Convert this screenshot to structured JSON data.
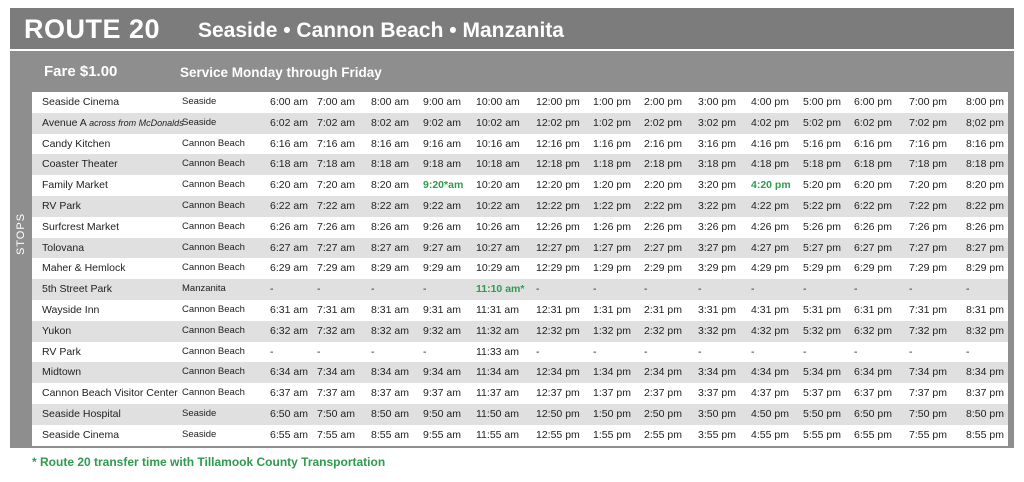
{
  "header": {
    "route": "ROUTE 20",
    "cities": "Seaside • Cannon Beach • Manzanita",
    "fare": "Fare $1.00",
    "service": "Service Monday through Friday",
    "side_label": "STOPS"
  },
  "rows": [
    {
      "stop": "Seaside Cinema",
      "note": "",
      "city": "Seaside",
      "times": [
        "6:00 am",
        "7:00 am",
        "8:00 am",
        "9:00 am",
        "10:00 am",
        "12:00 pm",
        "1:00 pm",
        "2:00 pm",
        "3:00 pm",
        "4:00 pm",
        "5:00 pm",
        "6:00 pm",
        "7:00 pm",
        "8:00 pm"
      ]
    },
    {
      "stop": "Avenue A",
      "note": "across from McDonalds",
      "city": "Seaside",
      "times": [
        "6:02 am",
        "7:02 am",
        "8:02 am",
        "9:02 am",
        "10:02 am",
        "12:02 pm",
        "1:02 pm",
        "2:02 pm",
        "3:02 pm",
        "4:02 pm",
        "5:02 pm",
        "6:02 pm",
        "7:02 pm",
        "8;02 pm"
      ]
    },
    {
      "stop": "Candy Kitchen",
      "note": "",
      "city": "Cannon Beach",
      "times": [
        "6:16 am",
        "7:16 am",
        "8:16 am",
        "9:16 am",
        "10:16 am",
        "12:16 pm",
        "1:16 pm",
        "2:16 pm",
        "3:16 pm",
        "4:16 pm",
        "5:16 pm",
        "6:16 pm",
        "7:16 pm",
        "8:16 pm"
      ]
    },
    {
      "stop": "Coaster Theater",
      "note": "",
      "city": "Cannon Beach",
      "times": [
        "6:18 am",
        "7:18 am",
        "8:18 am",
        "9:18 am",
        "10:18 am",
        "12:18 pm",
        "1:18 pm",
        "2:18 pm",
        "3:18 pm",
        "4:18 pm",
        "5:18 pm",
        "6:18 pm",
        "7:18 pm",
        "8:18 pm"
      ]
    },
    {
      "stop": "Family Market",
      "note": "",
      "city": "Cannon Beach",
      "times": [
        "6:20 am",
        "7:20 am",
        "8:20 am",
        "9:20*am",
        "10:20 am",
        "12:20 pm",
        "1:20 pm",
        "2:20 pm",
        "3:20 pm",
        "4:20 pm",
        "5:20 pm",
        "6:20 pm",
        "7:20 pm",
        "8:20 pm"
      ],
      "highlight": [
        3,
        9
      ]
    },
    {
      "stop": "RV Park",
      "note": "",
      "city": "Cannon Beach",
      "times": [
        "6:22 am",
        "7:22 am",
        "8:22 am",
        "9:22 am",
        "10:22 am",
        "12:22 pm",
        "1:22 pm",
        "2:22 pm",
        "3:22 pm",
        "4:22 pm",
        "5:22 pm",
        "6:22 pm",
        "7:22 pm",
        "8:22 pm"
      ]
    },
    {
      "stop": "Surfcrest Market",
      "note": "",
      "city": "Cannon Beach",
      "times": [
        "6:26 am",
        "7:26 am",
        "8:26 am",
        "9:26 am",
        "10:26 am",
        "12:26 pm",
        "1:26 pm",
        "2:26 pm",
        "3:26 pm",
        "4:26 pm",
        "5:26 pm",
        "6:26 pm",
        "7:26 pm",
        "8:26 pm"
      ]
    },
    {
      "stop": "Tolovana",
      "note": "",
      "city": "Cannon Beach",
      "times": [
        "6:27 am",
        "7:27 am",
        "8:27 am",
        "9:27 am",
        "10:27 am",
        "12:27 pm",
        "1:27 pm",
        "2:27 pm",
        "3:27 pm",
        "4:27 pm",
        "5:27 pm",
        "6:27 pm",
        "7:27 pm",
        "8:27 pm"
      ]
    },
    {
      "stop": "Maher & Hemlock",
      "note": "",
      "city": "Cannon Beach",
      "times": [
        "6:29 am",
        "7:29 am",
        "8:29 am",
        "9:29 am",
        "10:29 am",
        "12:29 pm",
        "1:29 pm",
        "2:29 pm",
        "3:29 pm",
        "4:29 pm",
        "5:29 pm",
        "6:29 pm",
        "7:29 pm",
        "8:29 pm"
      ]
    },
    {
      "stop": "5th Street Park",
      "note": "",
      "city": "Manzanita",
      "times": [
        "-",
        "-",
        "-",
        "-",
        "11:10 am*",
        "-",
        "-",
        "-",
        "-",
        "-",
        "-",
        "-",
        "-",
        "-"
      ],
      "highlight": [
        4
      ]
    },
    {
      "stop": "Wayside Inn",
      "note": "",
      "city": "Cannon Beach",
      "times": [
        "6:31 am",
        "7:31 am",
        "8:31 am",
        "9:31 am",
        "11:31 am",
        "12:31 pm",
        "1:31 pm",
        "2:31 pm",
        "3:31 pm",
        "4:31 pm",
        "5:31 pm",
        "6:31 pm",
        "7:31 pm",
        "8:31 pm"
      ]
    },
    {
      "stop": "Yukon",
      "note": "",
      "city": "Cannon Beach",
      "times": [
        "6:32 am",
        "7:32 am",
        "8:32 am",
        "9:32 am",
        "11:32 am",
        "12:32 pm",
        "1:32 pm",
        "2:32 pm",
        "3:32 pm",
        "4:32 pm",
        "5:32 pm",
        "6:32 pm",
        "7:32 pm",
        "8:32 pm"
      ]
    },
    {
      "stop": "RV Park",
      "note": "",
      "city": "Cannon Beach",
      "times": [
        "-",
        "-",
        "-",
        "-",
        "11:33 am",
        "-",
        "-",
        "-",
        "-",
        "-",
        "-",
        "-",
        "-",
        "-"
      ]
    },
    {
      "stop": "Midtown",
      "note": "",
      "city": "Cannon Beach",
      "times": [
        "6:34 am",
        "7:34 am",
        "8:34 am",
        "9:34 am",
        "11:34 am",
        "12:34 pm",
        "1:34 pm",
        "2:34 pm",
        "3:34 pm",
        "4:34 pm",
        "5:34 pm",
        "6:34 pm",
        "7:34 pm",
        "8:34 pm"
      ]
    },
    {
      "stop": "Cannon Beach Visitor Center",
      "note": "",
      "city": "Cannon Beach",
      "times": [
        "6:37 am",
        "7:37 am",
        "8:37 am",
        "9:37 am",
        "11:37 am",
        "12:37 pm",
        "1:37 pm",
        "2:37 pm",
        "3:37 pm",
        "4:37 pm",
        "5:37 pm",
        "6:37 pm",
        "7:37 pm",
        "8:37 pm"
      ]
    },
    {
      "stop": "Seaside Hospital",
      "note": "",
      "city": "Seaside",
      "times": [
        "6:50 am",
        "7:50 am",
        "8:50 am",
        "9:50 am",
        "11:50 am",
        "12:50 pm",
        "1:50 pm",
        "2:50 pm",
        "3:50 pm",
        "4:50 pm",
        "5:50 pm",
        "6:50 pm",
        "7:50 pm",
        "8:50 pm"
      ]
    },
    {
      "stop": "Seaside Cinema",
      "note": "",
      "city": "Seaside",
      "times": [
        "6:55 am",
        "7:55 am",
        "8:55 am",
        "9:55 am",
        "11:55 am",
        "12:55 pm",
        "1:55 pm",
        "2:55 pm",
        "3:55 pm",
        "4:55 pm",
        "5:55 pm",
        "6:55 pm",
        "7:55 pm",
        "8:55 pm"
      ]
    }
  ],
  "footnote": "* Route 20 transfer time with Tillamook County Transportation",
  "colors": {
    "header_gray": "#8e8e8e",
    "row_alt": "#e0e0e1",
    "highlight_green": "#2e9b4e"
  }
}
